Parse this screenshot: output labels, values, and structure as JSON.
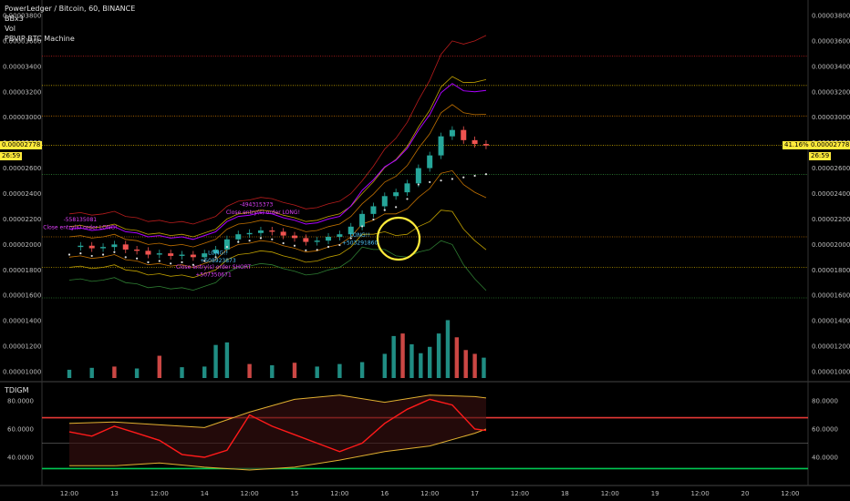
{
  "header": {
    "title": "PowerLedger / Bitcoin, 60, BINANCE",
    "studies": [
      "BBx3",
      "Vol",
      "PBVIP BTC Machine"
    ]
  },
  "price_tag": {
    "value": "0.00002778",
    "countdown": "26:59",
    "change_pct": "41.16%"
  },
  "indicator": {
    "name": "TDIGM"
  },
  "colors": {
    "up": "#26a69a",
    "down": "#ef5350",
    "highlight": "#ffeb3b",
    "rsi": "#ff1a1a",
    "band": "#e0b030",
    "oversold": "#00c853"
  },
  "chart_data": [
    {
      "type": "candlestick",
      "title": "PowerLedger / Bitcoin, 60, BINANCE",
      "ylim": [
        8.9e-06,
        3.9e-05
      ],
      "y_ticks": [
        "0.00003800",
        "0.00003600",
        "0.00003400",
        "0.00003200",
        "0.00003000",
        "0.00002800",
        "0.00002600",
        "0.00002400",
        "0.00002200",
        "0.00002000",
        "0.00001800",
        "0.00001600",
        "0.00001400",
        "0.00001200",
        "0.00001000"
      ],
      "y_tick_values": [
        38,
        36,
        34,
        32,
        30,
        28,
        26,
        24,
        22,
        20,
        18,
        16,
        14,
        12,
        10
      ],
      "x_ticks": [
        "12:00",
        "13",
        "12:00",
        "14",
        "12:00",
        "15",
        "12:00",
        "16",
        "12:00",
        "17",
        "12:00",
        "18",
        "12:00",
        "19",
        "12:00",
        "20",
        "12:00"
      ],
      "horizontal_levels": [
        {
          "value": 34.8,
          "color": "#b71c1c"
        },
        {
          "value": 32.5,
          "color": "#c0a000"
        },
        {
          "value": 30.1,
          "color": "#c07000"
        },
        {
          "value": 27.8,
          "color": "#c0a000"
        },
        {
          "value": 25.5,
          "color": "#2e7d32"
        },
        {
          "value": 20.6,
          "color": "#c07000"
        },
        {
          "value": 18.2,
          "color": "#c0a000"
        },
        {
          "value": 15.8,
          "color": "#2e7d32"
        }
      ],
      "annotations": [
        {
          "text": "-558135081",
          "color": "#e040fb",
          "x": 0.24,
          "y": 21.8
        },
        {
          "text": "Close entry(s) order LONG!",
          "color": "#e040fb",
          "x": 0.24,
          "y": 21.2
        },
        {
          "text": "Close entry(s) order SHORT",
          "color": "#e040fb",
          "x": 3.2,
          "y": 18.1
        },
        {
          "text": "+507350671",
          "color": "#e040fb",
          "x": 3.2,
          "y": 17.5
        },
        {
          "text": "LONG!!",
          "color": "#4fc3f7",
          "x": 3.3,
          "y": 19.2
        },
        {
          "text": "+508923873",
          "color": "#4fc3f7",
          "x": 3.3,
          "y": 18.6
        },
        {
          "text": "-494315373",
          "color": "#e040fb",
          "x": 4.15,
          "y": 23.0
        },
        {
          "text": "Close entry(s) order LONG!",
          "color": "#e040fb",
          "x": 4.3,
          "y": 22.4
        },
        {
          "text": "LONG!!",
          "color": "#4fc3f7",
          "x": 6.45,
          "y": 20.6
        },
        {
          "text": "+503291860",
          "color": "#4fc3f7",
          "x": 6.45,
          "y": 20.0
        }
      ],
      "series": [
        {
          "name": "close",
          "x": [
            0,
            0.25,
            0.5,
            0.75,
            1,
            1.25,
            1.5,
            1.75,
            2,
            2.25,
            2.5,
            2.75,
            3,
            3.25,
            3.5,
            3.75,
            4,
            4.25,
            4.5,
            4.75,
            5,
            5.25,
            5.5,
            5.75,
            6,
            6.25,
            6.5,
            6.75,
            7,
            7.25,
            7.5,
            7.75,
            8,
            8.25,
            8.5,
            8.75,
            9,
            9.25
          ],
          "values": [
            19.8,
            19.9,
            19.7,
            19.8,
            20.0,
            19.6,
            19.5,
            19.2,
            19.3,
            19.1,
            19.2,
            19.0,
            19.3,
            19.6,
            20.4,
            20.8,
            20.9,
            21.1,
            21.0,
            20.7,
            20.5,
            20.2,
            20.3,
            20.6,
            20.8,
            21.4,
            22.4,
            23.0,
            23.8,
            24.1,
            24.8,
            26.0,
            27.0,
            28.5,
            29.0,
            28.2,
            27.9,
            27.78
          ]
        }
      ]
    },
    {
      "type": "bar",
      "name": "Vol",
      "x": [
        0,
        0.5,
        1,
        1.5,
        2,
        2.5,
        3,
        3.25,
        3.5,
        4,
        4.5,
        5,
        5.5,
        6,
        6.5,
        7,
        7.2,
        7.4,
        7.6,
        7.8,
        8,
        8.2,
        8.4,
        8.6,
        8.8,
        9,
        9.2
      ],
      "values": [
        0.3,
        0.6,
        0.8,
        0.5,
        2.5,
        0.7,
        0.8,
        4.2,
        4.6,
        1.2,
        1.0,
        1.4,
        0.8,
        1.2,
        1.5,
        2.8,
        5.6,
        6.0,
        4.3,
        2.9,
        3.9,
        6.0,
        8.1,
        5.4,
        3.4,
        2.8,
        2.2
      ],
      "colors": [
        "up",
        "up",
        "down",
        "up",
        "down",
        "up",
        "up",
        "up",
        "up",
        "down",
        "up",
        "down",
        "up",
        "up",
        "up",
        "up",
        "up",
        "down",
        "up",
        "up",
        "up",
        "up",
        "up",
        "down",
        "down",
        "down",
        "up"
      ]
    },
    {
      "type": "line",
      "name": "TDIGM",
      "ylim": [
        20,
        90
      ],
      "y_ticks": [
        "80.0000",
        "60.0000",
        "40.0000"
      ],
      "y_tick_values": [
        80,
        60,
        40
      ],
      "levels": [
        {
          "value": 68,
          "color": "#e53935"
        },
        {
          "value": 50,
          "color": "#888888"
        },
        {
          "value": 32,
          "color": "#00c853"
        }
      ],
      "series": [
        {
          "name": "rsi",
          "x": [
            0,
            0.5,
            1,
            1.5,
            2,
            2.5,
            3,
            3.5,
            4,
            4.5,
            5,
            5.5,
            6,
            6.5,
            7,
            7.5,
            8,
            8.5,
            9,
            9.25
          ],
          "values": [
            58,
            55,
            62,
            57,
            52,
            42,
            40,
            45,
            70,
            62,
            56,
            50,
            44,
            50,
            64,
            74,
            81,
            77,
            60,
            59
          ]
        },
        {
          "name": "upper_band",
          "x": [
            0,
            1,
            2,
            3,
            4,
            5,
            6,
            7,
            8,
            9,
            9.25
          ],
          "values": [
            64,
            65,
            63,
            61,
            72,
            81,
            84,
            79,
            84,
            83,
            82
          ]
        },
        {
          "name": "lower_band",
          "x": [
            0,
            1,
            2,
            3,
            4,
            5,
            6,
            7,
            8,
            9,
            9.25
          ],
          "values": [
            34,
            34,
            36,
            33,
            31,
            33,
            38,
            44,
            48,
            57,
            60
          ]
        }
      ]
    }
  ]
}
